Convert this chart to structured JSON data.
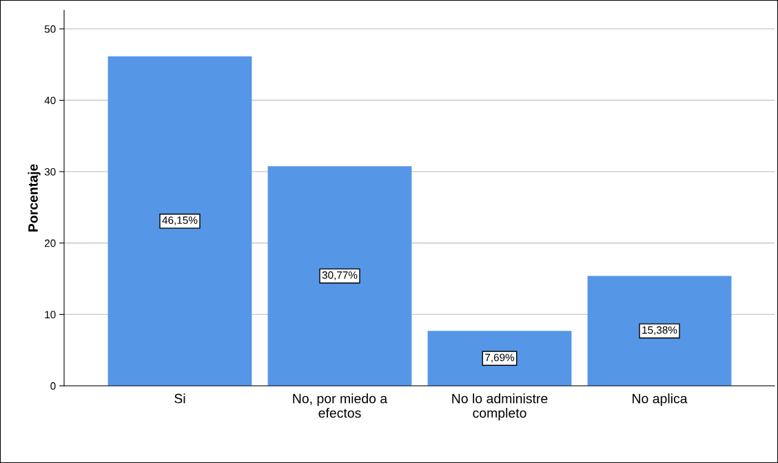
{
  "chart_data": {
    "type": "bar",
    "ylabel": "Porcentaje",
    "categories": [
      "Si",
      "No, por miedo a\nefectos",
      "No lo administre\ncompleto",
      "No aplica"
    ],
    "values": [
      46.15,
      30.77,
      7.69,
      15.38
    ],
    "value_labels": [
      "46,15%",
      "30,77%",
      "7,69%",
      "15,38%"
    ],
    "color": "#5596e6",
    "ylim": [
      0,
      52.6
    ],
    "yticks": [
      0,
      10,
      20,
      30,
      40,
      50
    ],
    "grid": "y",
    "legend": false
  }
}
